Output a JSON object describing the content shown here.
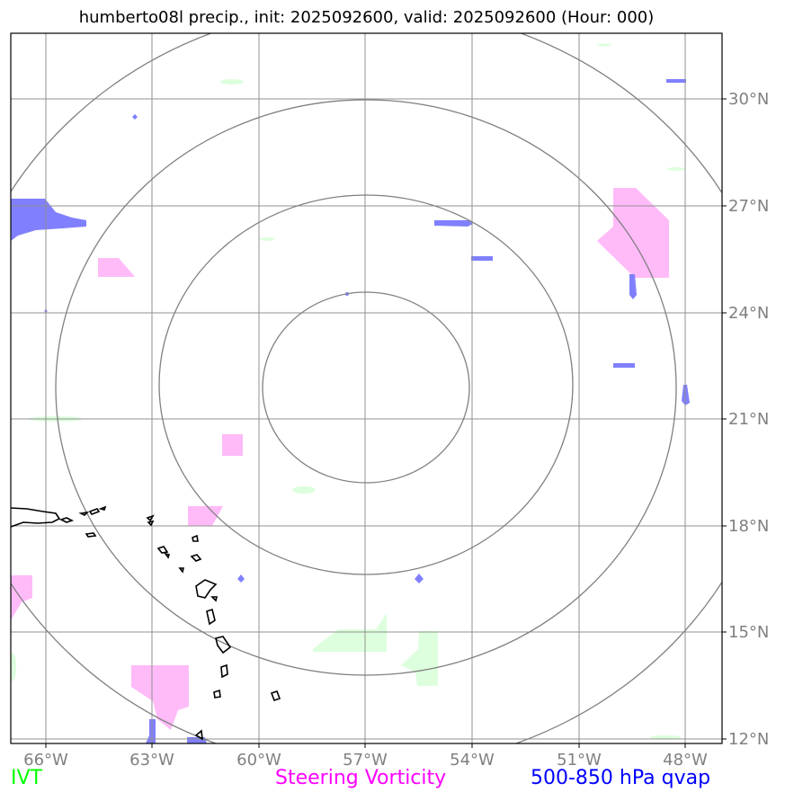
{
  "title": "humberto08l precip., init: 2025092600, valid: 2025092600 (Hour: 000)",
  "lon_ticks": [
    "66°W",
    "63°W",
    "60°W",
    "57°W",
    "54°W",
    "51°W",
    "48°W"
  ],
  "lat_ticks": [
    "30°N",
    "27°N",
    "24°N",
    "21°N",
    "18°N",
    "15°N",
    "12°N"
  ],
  "legend": {
    "ivt": "IVT",
    "vorticity": "Steering Vorticity",
    "qvap": "500-850 hPa qvap"
  },
  "colors": {
    "ivt": "#00ff00",
    "vorticity": "#ff00ff",
    "qvap": "#0000ff",
    "grid": "#808080"
  }
}
